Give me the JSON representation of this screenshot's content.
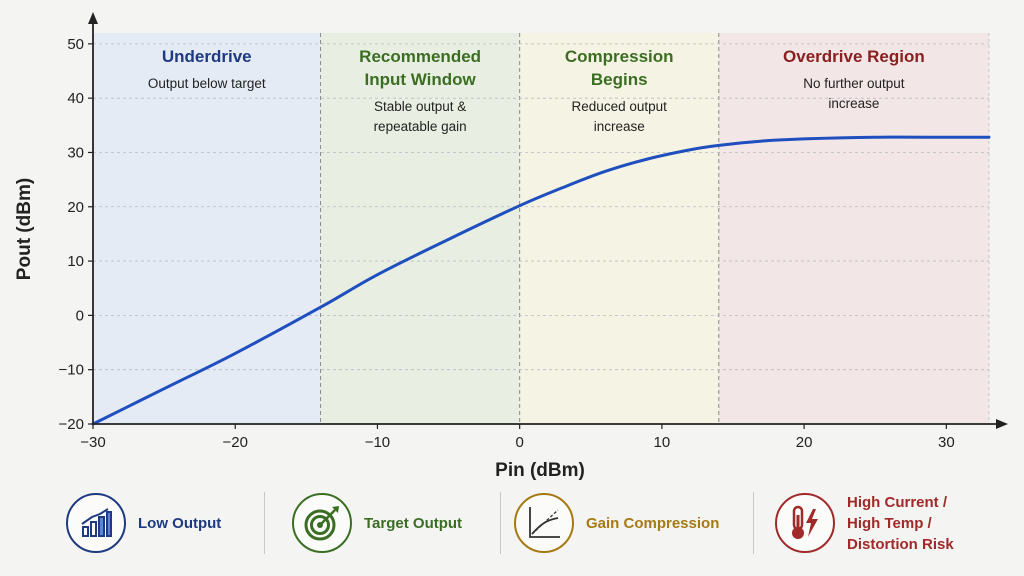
{
  "chart_data": {
    "type": "line",
    "xlabel": "Pin (dBm)",
    "ylabel": "Pout (dBm)",
    "xlim": [
      -30,
      33
    ],
    "ylim": [
      -20,
      52
    ],
    "xticks": [
      -30,
      -20,
      -10,
      0,
      10,
      20,
      30
    ],
    "xtick_labels": [
      "−30",
      "−20",
      "−10",
      "0",
      "10",
      "20",
      "30"
    ],
    "yticks": [
      -20,
      -10,
      0,
      10,
      20,
      30,
      40,
      50
    ],
    "ytick_labels": [
      "−20",
      "−10",
      "0",
      "10",
      "20",
      "30",
      "40",
      "50"
    ],
    "grid": true,
    "series": [
      {
        "color": "#1f4fbf",
        "x": [
          -30,
          -25,
          -20,
          -14,
          -10,
          -5,
          0,
          3,
          6,
          9,
          12,
          14,
          17,
          20,
          25,
          30,
          33
        ],
        "y": [
          -20,
          -13.5,
          -7,
          1.5,
          7.5,
          14,
          20.2,
          23.5,
          26.5,
          28.8,
          30.5,
          31.3,
          32.1,
          32.5,
          32.8,
          32.8,
          32.8
        ]
      }
    ],
    "regions": [
      {
        "x0": -30,
        "x1": -14,
        "fill": "#e4ebf4",
        "title_color": "#1e3a80",
        "title": [
          "Underdrive"
        ],
        "subtitle": [
          "Output below target"
        ]
      },
      {
        "x0": -14,
        "x1": 0,
        "fill": "#e8efe2",
        "title_color": "#3b6e22",
        "title": [
          "Recommended",
          "Input Window"
        ],
        "subtitle": [
          "Stable output &",
          "repeatable gain"
        ]
      },
      {
        "x0": 0,
        "x1": 14,
        "fill": "#f5f3e3",
        "title_color": "#3b6e22",
        "title": [
          "Compression",
          "Begins"
        ],
        "subtitle": [
          "Reduced output",
          "increase"
        ]
      },
      {
        "x0": 14,
        "x1": 33,
        "fill": "#f3e6e6",
        "title_color": "#8a2020",
        "title": [
          "Overdrive Region"
        ],
        "subtitle": [
          "No further output",
          "increase"
        ]
      }
    ]
  },
  "legend": [
    {
      "icon": "bar-chart-icon",
      "color": "#1e3a80",
      "label": [
        "Low Output"
      ]
    },
    {
      "icon": "target-icon",
      "color": "#3b6e22",
      "label": [
        "Target Output"
      ]
    },
    {
      "icon": "compression-curve-icon",
      "color": "#a67a12",
      "label": [
        "Gain Compression"
      ]
    },
    {
      "icon": "thermometer-lightning-icon",
      "color": "#a02a2a",
      "label": [
        "High Current /",
        "High Temp /",
        "Distortion Risk"
      ]
    }
  ]
}
